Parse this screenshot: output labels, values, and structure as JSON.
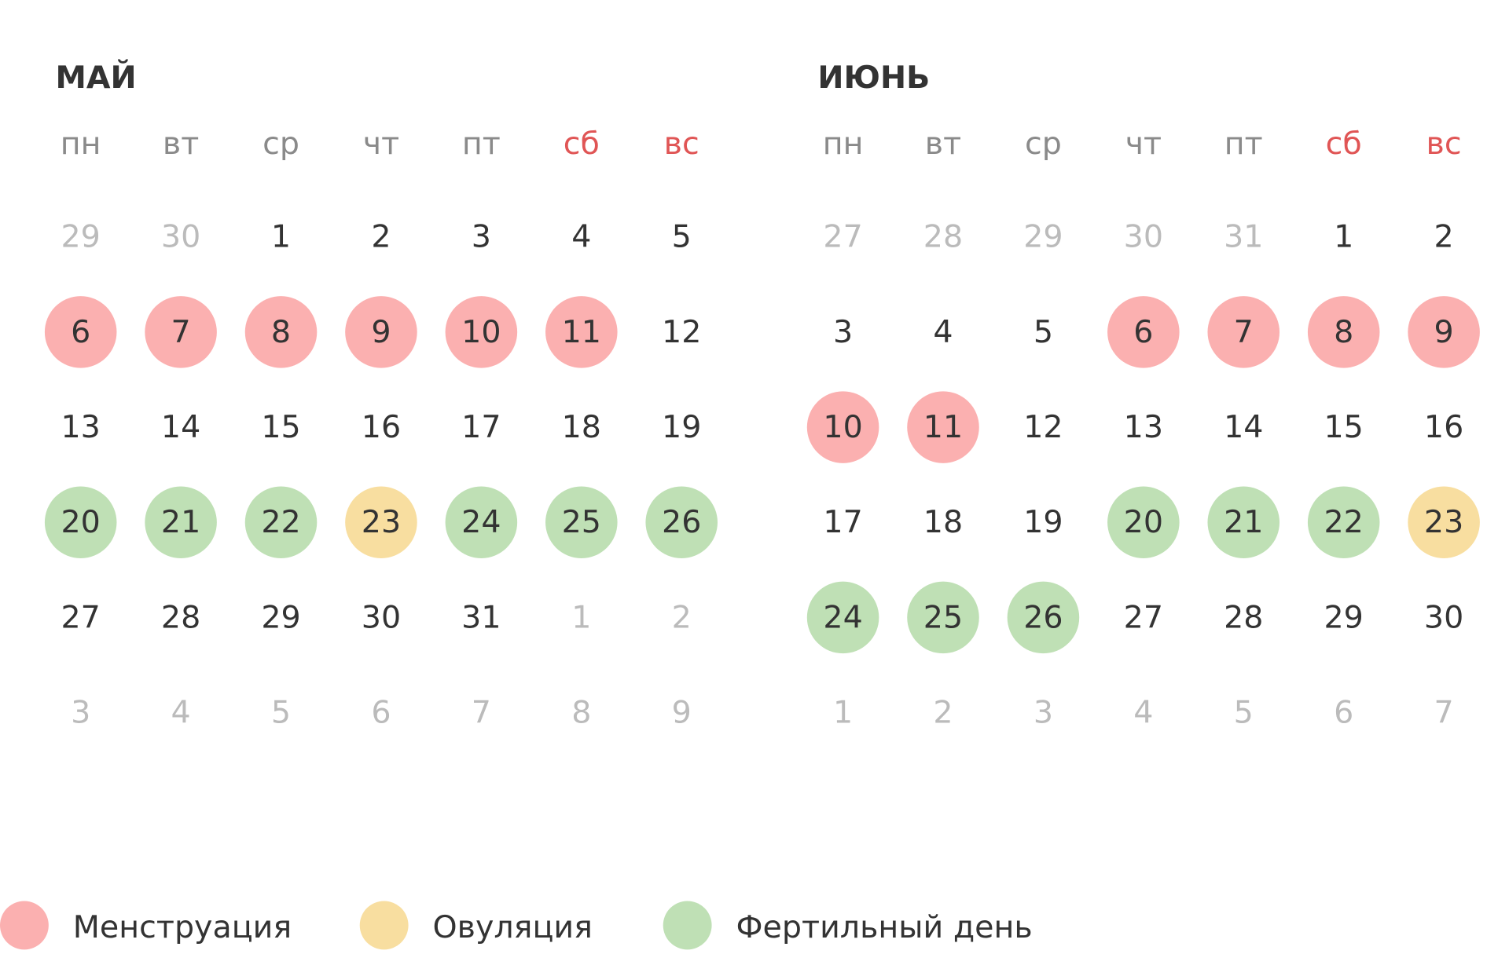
{
  "colors": {
    "m": "#fbb0b0",
    "v": "#f8dea0",
    "f": "#bfe0b5",
    "weekend": "#e05555",
    "weekday": "#8a8a8a",
    "day": "#333333",
    "outside": "#bbbbbb"
  },
  "months": [
    {
      "title": "МАЙ",
      "weekdays": [
        {
          "label": "пн"
        },
        {
          "label": "вт"
        },
        {
          "label": "ср"
        },
        {
          "label": "чт"
        },
        {
          "label": "пт"
        },
        {
          "label": "сб",
          "weekend": true
        },
        {
          "label": "вс",
          "weekend": true
        }
      ],
      "weeks": [
        [
          29,
          30,
          1,
          2,
          3,
          4,
          5
        ],
        [
          6,
          7,
          8,
          9,
          10,
          11,
          12
        ],
        [
          13,
          14,
          15,
          16,
          17,
          18,
          19
        ],
        [
          20,
          21,
          22,
          23,
          24,
          25,
          26
        ],
        [
          27,
          28,
          29,
          30,
          31,
          1,
          2
        ],
        [
          3,
          4,
          5,
          6,
          7,
          8,
          9
        ]
      ],
      "states": [
        "oonnnnn",
        "mmmmmmn",
        "nnnnnnn",
        "fffvfff",
        "nnnnnoo",
        "ooooooo"
      ]
    },
    {
      "title": "ИЮНЬ",
      "weekdays": [
        {
          "label": "пн"
        },
        {
          "label": "вт"
        },
        {
          "label": "ср"
        },
        {
          "label": "чт"
        },
        {
          "label": "пт"
        },
        {
          "label": "сб",
          "weekend": true
        },
        {
          "label": "вс",
          "weekend": true
        }
      ],
      "weeks": [
        [
          27,
          28,
          29,
          30,
          31,
          1,
          2
        ],
        [
          3,
          4,
          5,
          6,
          7,
          8,
          9
        ],
        [
          10,
          11,
          12,
          13,
          14,
          15,
          16
        ],
        [
          17,
          18,
          19,
          20,
          21,
          22,
          23
        ],
        [
          24,
          25,
          26,
          27,
          28,
          29,
          30
        ],
        [
          1,
          2,
          3,
          4,
          5,
          6,
          7
        ]
      ],
      "states": [
        "ooooonn",
        "nnnmmmm",
        "mmnnnnn",
        "nnnfffv",
        "fffnnnn",
        "ooooooo"
      ]
    }
  ],
  "legend": [
    {
      "state": "m",
      "label": "Менструация"
    },
    {
      "state": "v",
      "label": "Овуляция"
    },
    {
      "state": "f",
      "label": "Фертильный день"
    }
  ]
}
